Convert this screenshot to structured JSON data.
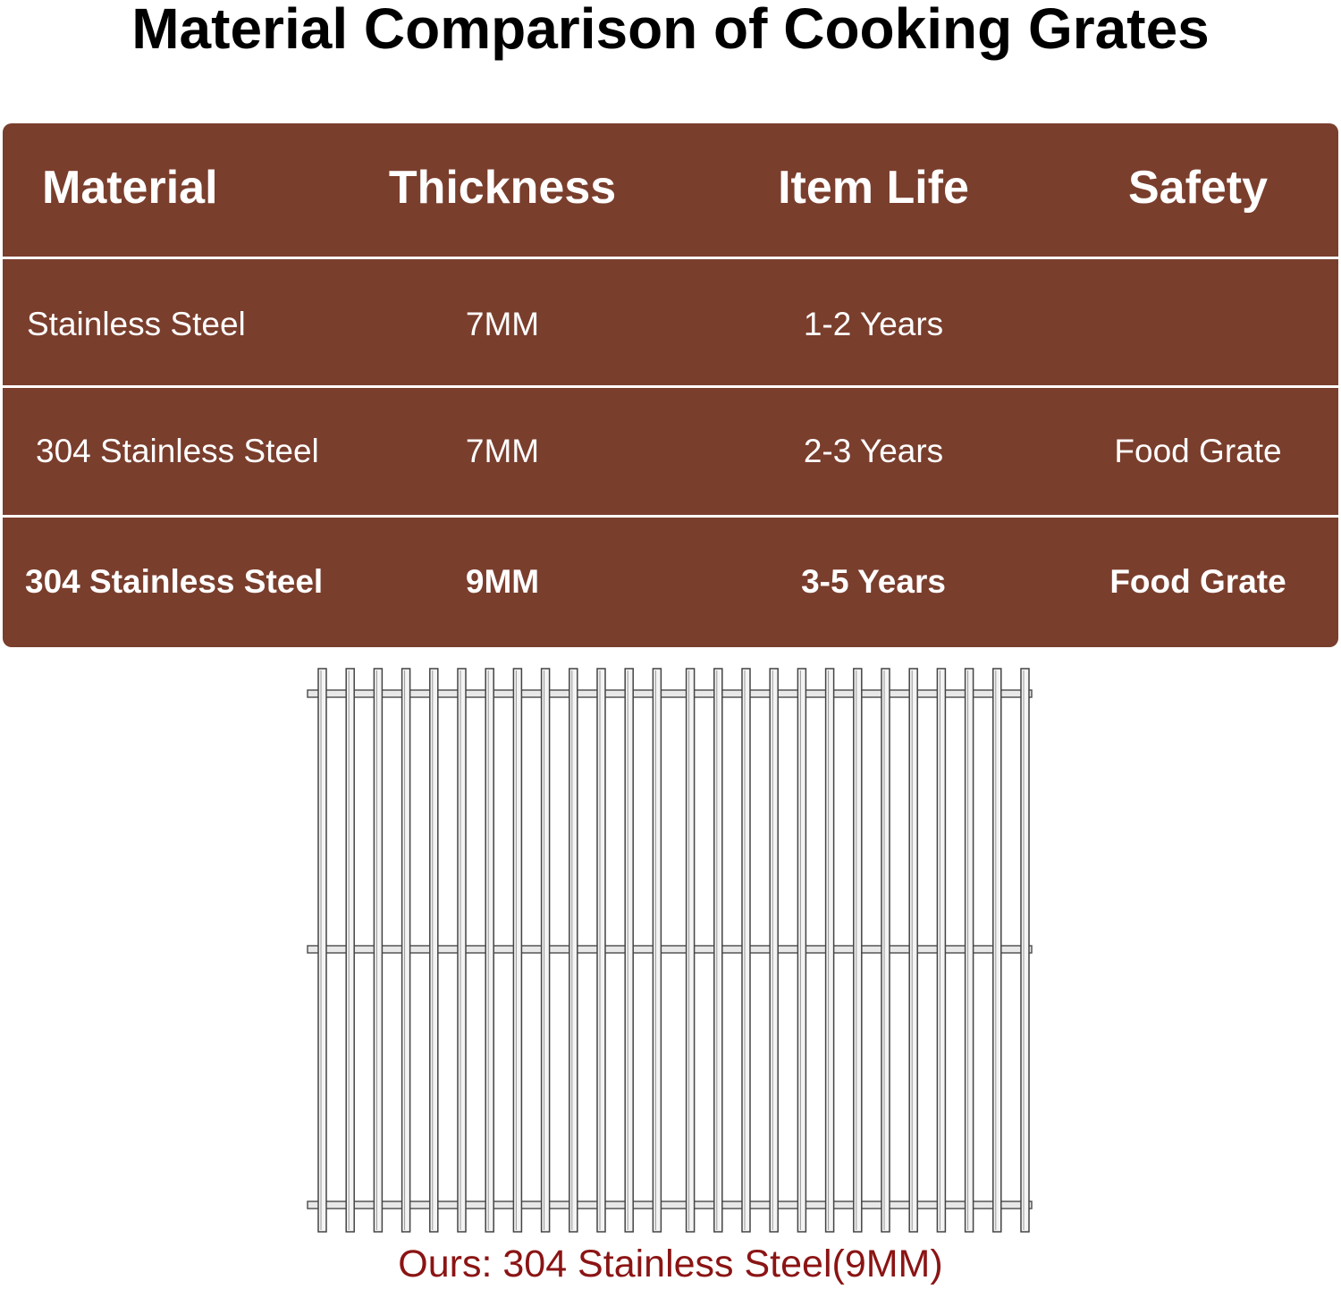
{
  "header": {
    "title": "Material Comparison of Cooking Grates"
  },
  "table": {
    "columns": [
      "Material",
      "Thickness",
      "Item Life",
      "Safety"
    ],
    "rows": [
      [
        "Stainless Steel",
        "7MM",
        "1-2 Years",
        null
      ],
      [
        "304 Stainless Steel",
        "7MM",
        "2-3 Years",
        "Food Grate"
      ],
      [
        "304 Stainless Steel",
        "9MM",
        "3-5 Years",
        "Food Grate"
      ]
    ]
  },
  "caption": "Ours: 304 Stainless Steel(9MM)"
}
